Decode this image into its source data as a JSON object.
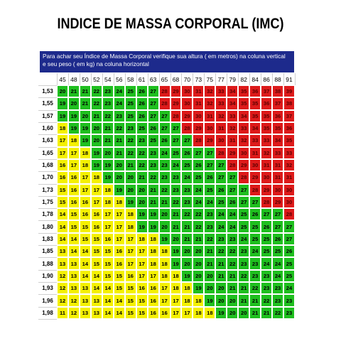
{
  "title": "INDICE DE MASSA CORPORAL (IMC)",
  "banner": {
    "line1": "Para achar seu Índice de Massa Corporal  verifique sua altura ( em metros) na coluna vertical",
    "line2": "e  seu peso ( em kg) na coluna horizontal"
  },
  "colors": {
    "yellow": "#f4f000",
    "green": "#1fbf1f",
    "red": "#dd1a1a",
    "banner": "#1d2a8c"
  },
  "weights": [
    "45",
    "48",
    "50",
    "52",
    "54",
    "56",
    "58",
    "61",
    "63",
    "65",
    "68",
    "70",
    "73",
    "75",
    "77",
    "79",
    "82",
    "84",
    "86",
    "88",
    "91"
  ],
  "rows": [
    {
      "height": "1,53",
      "values": [
        20,
        21,
        21,
        22,
        23,
        24,
        25,
        26,
        27,
        28,
        29,
        30,
        31,
        32,
        33,
        34,
        35,
        36,
        37,
        38,
        39
      ]
    },
    {
      "height": "1,55",
      "values": [
        19,
        20,
        21,
        22,
        23,
        24,
        25,
        26,
        27,
        28,
        29,
        30,
        31,
        32,
        33,
        34,
        35,
        35,
        36,
        37,
        38
      ]
    },
    {
      "height": "1,57",
      "values": [
        19,
        19,
        20,
        21,
        22,
        23,
        25,
        26,
        27,
        27,
        28,
        29,
        30,
        31,
        32,
        33,
        34,
        35,
        35,
        36,
        37
      ]
    },
    {
      "height": "1,60",
      "values": [
        18,
        19,
        19,
        20,
        21,
        22,
        23,
        25,
        26,
        27,
        27,
        28,
        29,
        30,
        31,
        32,
        33,
        34,
        35,
        35,
        36
      ]
    },
    {
      "height": "1,63",
      "values": [
        17,
        18,
        19,
        20,
        21,
        21,
        22,
        23,
        25,
        26,
        27,
        27,
        28,
        29,
        30,
        31,
        32,
        33,
        33,
        34,
        35
      ]
    },
    {
      "height": "1,65",
      "values": [
        17,
        17,
        18,
        19,
        20,
        21,
        22,
        22,
        23,
        24,
        25,
        26,
        27,
        27,
        28,
        29,
        30,
        31,
        32,
        33,
        33
      ]
    },
    {
      "height": "1,68",
      "values": [
        16,
        17,
        18,
        19,
        19,
        20,
        21,
        22,
        23,
        23,
        24,
        25,
        26,
        27,
        27,
        28,
        29,
        30,
        31,
        31,
        32
      ]
    },
    {
      "height": "1,70",
      "values": [
        16,
        16,
        17,
        18,
        19,
        20,
        20,
        21,
        22,
        23,
        23,
        24,
        25,
        26,
        27,
        27,
        28,
        29,
        30,
        31,
        31
      ]
    },
    {
      "height": "1,73",
      "values": [
        15,
        16,
        17,
        17,
        18,
        19,
        20,
        20,
        21,
        22,
        23,
        23,
        24,
        25,
        26,
        27,
        27,
        28,
        29,
        30,
        30
      ]
    },
    {
      "height": "1,75",
      "values": [
        15,
        16,
        16,
        17,
        18,
        18,
        19,
        20,
        21,
        21,
        22,
        23,
        24,
        24,
        25,
        26,
        27,
        27,
        28,
        29,
        30
      ]
    },
    {
      "height": "1,78",
      "values": [
        14,
        15,
        16,
        16,
        17,
        17,
        18,
        19,
        19,
        20,
        21,
        22,
        22,
        23,
        24,
        24,
        25,
        26,
        27,
        27,
        28
      ]
    },
    {
      "height": "1,80",
      "values": [
        14,
        15,
        15,
        16,
        17,
        17,
        18,
        19,
        19,
        20,
        21,
        21,
        22,
        23,
        24,
        24,
        25,
        25,
        26,
        27,
        27
      ]
    },
    {
      "height": "1,83",
      "values": [
        14,
        14,
        15,
        15,
        16,
        17,
        17,
        18,
        18,
        19,
        20,
        21,
        21,
        22,
        23,
        23,
        24,
        25,
        25,
        26,
        27
      ]
    },
    {
      "height": "1,85",
      "values": [
        13,
        14,
        14,
        15,
        15,
        16,
        17,
        17,
        18,
        18,
        19,
        20,
        20,
        21,
        22,
        22,
        23,
        24,
        25,
        25,
        26
      ]
    },
    {
      "height": "1,88",
      "values": [
        13,
        13,
        14,
        15,
        15,
        16,
        17,
        17,
        18,
        18,
        19,
        20,
        20,
        21,
        21,
        22,
        23,
        23,
        24,
        24,
        25
      ]
    },
    {
      "height": "1,90",
      "values": [
        12,
        13,
        14,
        14,
        15,
        15,
        16,
        17,
        17,
        18,
        18,
        19,
        20,
        20,
        21,
        21,
        22,
        23,
        23,
        24,
        25
      ]
    },
    {
      "height": "1,93",
      "values": [
        12,
        13,
        13,
        14,
        14,
        15,
        15,
        16,
        16,
        17,
        18,
        18,
        19,
        20,
        20,
        21,
        21,
        22,
        23,
        23,
        24
      ]
    },
    {
      "height": "1,96",
      "values": [
        12,
        12,
        13,
        13,
        14,
        14,
        15,
        15,
        16,
        17,
        17,
        18,
        18,
        19,
        20,
        20,
        21,
        21,
        22,
        23,
        23
      ]
    },
    {
      "height": "1,98",
      "values": [
        11,
        12,
        13,
        13,
        14,
        14,
        15,
        15,
        16,
        16,
        17,
        17,
        18,
        18,
        19,
        20,
        20,
        21,
        21,
        22,
        23
      ]
    }
  ]
}
